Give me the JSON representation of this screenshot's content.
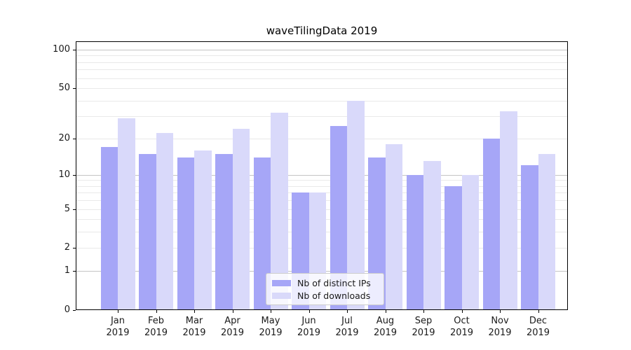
{
  "chart_data": {
    "type": "bar",
    "title": "waveTilingData 2019",
    "categories": [
      "Jan",
      "Feb",
      "Mar",
      "Apr",
      "May",
      "Jun",
      "Jul",
      "Aug",
      "Sep",
      "Oct",
      "Nov",
      "Dec"
    ],
    "x_year_label": "2019",
    "series": [
      {
        "name": "Nb of distinct IPs",
        "color": "#a6a6f7",
        "values": [
          17,
          15,
          14,
          15,
          14,
          7,
          25,
          14,
          10,
          8,
          20,
          12
        ]
      },
      {
        "name": "Nb of downloads",
        "color": "#d9d9fa",
        "values": [
          29,
          22,
          16,
          24,
          32,
          7,
          40,
          18,
          13,
          10,
          33,
          15
        ]
      }
    ],
    "yscale": "log1p",
    "yticks": [
      0,
      1,
      2,
      5,
      10,
      20,
      50,
      100
    ],
    "minor_gridlines": [
      3,
      4,
      6,
      7,
      8,
      9,
      30,
      40,
      60,
      70,
      80,
      90
    ],
    "ylim": [
      0,
      116
    ],
    "grid": true,
    "legend_position": "lower center"
  },
  "colors": {
    "background": "#ffffff",
    "spine": "#000000",
    "text": "#1a1a1a",
    "grid_major": "#c4c4c4",
    "grid_minor": "#e9e9e9",
    "legend_border": "#cccccc"
  }
}
